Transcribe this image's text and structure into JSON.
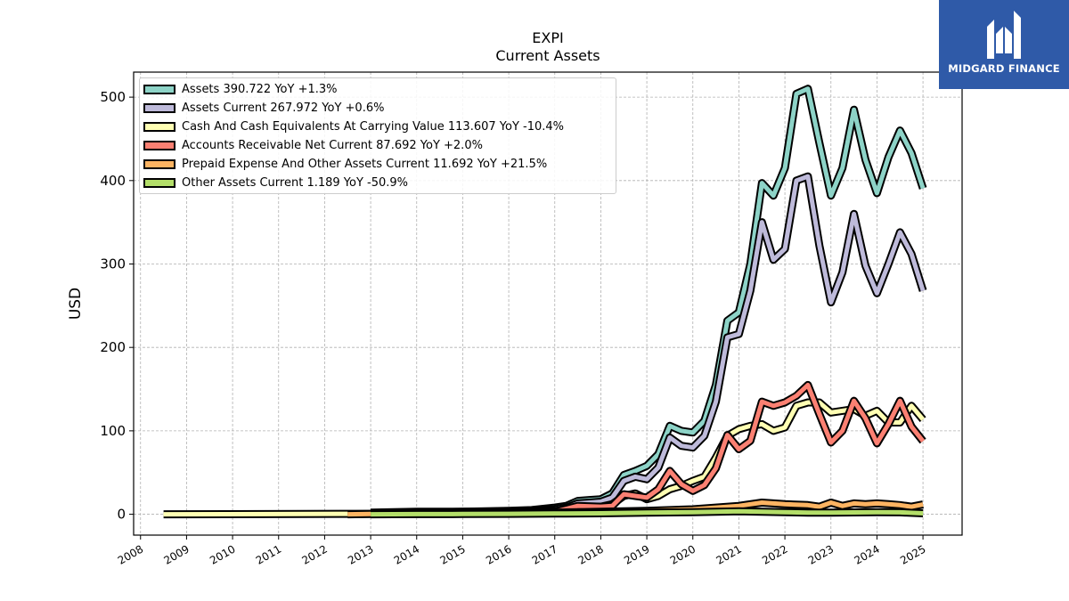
{
  "brand": {
    "name": "MIDGARD FINANCE",
    "bg_color": "#2f5aa8"
  },
  "chart_data": {
    "type": "area",
    "title": "EXPI",
    "subtitle": "Current  Assets",
    "ylabel": "USD",
    "xlabel": "",
    "ylim": [
      -25,
      530
    ],
    "xlim": [
      2007.85,
      2025.85
    ],
    "yticks": [
      0,
      100,
      200,
      300,
      400,
      500
    ],
    "xticks": [
      "2008",
      "2009",
      "2010",
      "2011",
      "2012",
      "2013",
      "2014",
      "2015",
      "2016",
      "2017",
      "2018",
      "2019",
      "2020",
      "2021",
      "2022",
      "2023",
      "2024",
      "2025"
    ],
    "grid": true,
    "legend_position": "top-left",
    "series": [
      {
        "name": "Assets",
        "legend": "Assets  390.722 YoY +1.3%",
        "color": "#8dd3c7",
        "points": [
          [
            2013.0,
            2
          ],
          [
            2014.0,
            3
          ],
          [
            2015.0,
            3
          ],
          [
            2016.0,
            4
          ],
          [
            2016.5,
            5
          ],
          [
            2017.0,
            8
          ],
          [
            2017.25,
            10
          ],
          [
            2017.5,
            16
          ],
          [
            2017.75,
            17
          ],
          [
            2018.0,
            18
          ],
          [
            2018.25,
            25
          ],
          [
            2018.5,
            47
          ],
          [
            2018.75,
            52
          ],
          [
            2019.0,
            58
          ],
          [
            2019.25,
            72
          ],
          [
            2019.5,
            106
          ],
          [
            2019.75,
            100
          ],
          [
            2020.0,
            98
          ],
          [
            2020.25,
            112
          ],
          [
            2020.5,
            155
          ],
          [
            2020.75,
            232
          ],
          [
            2021.0,
            242
          ],
          [
            2021.25,
            300
          ],
          [
            2021.5,
            397
          ],
          [
            2021.75,
            382
          ],
          [
            2022.0,
            415
          ],
          [
            2022.25,
            504
          ],
          [
            2022.5,
            510
          ],
          [
            2022.75,
            445
          ],
          [
            2023.0,
            382
          ],
          [
            2023.25,
            415
          ],
          [
            2023.5,
            485
          ],
          [
            2023.75,
            425
          ],
          [
            2024.0,
            385
          ],
          [
            2024.25,
            428
          ],
          [
            2024.5,
            460
          ],
          [
            2024.75,
            433
          ],
          [
            2025.0,
            390.722
          ]
        ]
      },
      {
        "name": "Assets Current",
        "legend": "Assets Current  267.972 YoY +0.6%",
        "color": "#bebada",
        "points": [
          [
            2013.0,
            1
          ],
          [
            2014.0,
            2
          ],
          [
            2015.0,
            3
          ],
          [
            2016.0,
            3
          ],
          [
            2016.5,
            4
          ],
          [
            2017.0,
            6
          ],
          [
            2017.25,
            8
          ],
          [
            2017.5,
            13
          ],
          [
            2017.75,
            14
          ],
          [
            2018.0,
            15
          ],
          [
            2018.25,
            20
          ],
          [
            2018.5,
            40
          ],
          [
            2018.75,
            45
          ],
          [
            2019.0,
            42
          ],
          [
            2019.25,
            56
          ],
          [
            2019.5,
            92
          ],
          [
            2019.75,
            82
          ],
          [
            2020.0,
            80
          ],
          [
            2020.25,
            94
          ],
          [
            2020.5,
            135
          ],
          [
            2020.75,
            212
          ],
          [
            2021.0,
            216
          ],
          [
            2021.25,
            268
          ],
          [
            2021.5,
            350
          ],
          [
            2021.75,
            305
          ],
          [
            2022.0,
            318
          ],
          [
            2022.25,
            400
          ],
          [
            2022.5,
            405
          ],
          [
            2022.75,
            322
          ],
          [
            2023.0,
            254
          ],
          [
            2023.25,
            290
          ],
          [
            2023.5,
            360
          ],
          [
            2023.75,
            298
          ],
          [
            2024.0,
            265
          ],
          [
            2024.25,
            300
          ],
          [
            2024.5,
            338
          ],
          [
            2024.75,
            312
          ],
          [
            2025.0,
            267.972
          ]
        ]
      },
      {
        "name": "Cash And Cash Equivalents At Carrying Value",
        "legend": "Cash And Cash Equivalents At Carrying Value  113.607 YoY -10.4%",
        "color": "#ffffb3",
        "points": [
          [
            2008.5,
            0
          ],
          [
            2013.0,
            0.5
          ],
          [
            2014.0,
            1
          ],
          [
            2015.0,
            1.5
          ],
          [
            2016.0,
            2
          ],
          [
            2016.5,
            3
          ],
          [
            2017.0,
            4
          ],
          [
            2017.5,
            7
          ],
          [
            2018.0,
            9
          ],
          [
            2018.25,
            12
          ],
          [
            2018.5,
            22
          ],
          [
            2018.75,
            25
          ],
          [
            2019.0,
            18
          ],
          [
            2019.25,
            22
          ],
          [
            2019.5,
            30
          ],
          [
            2019.75,
            34
          ],
          [
            2020.0,
            40
          ],
          [
            2020.25,
            45
          ],
          [
            2020.5,
            68
          ],
          [
            2020.75,
            94
          ],
          [
            2021.0,
            102
          ],
          [
            2021.25,
            106
          ],
          [
            2021.5,
            108
          ],
          [
            2021.75,
            100
          ],
          [
            2022.0,
            104
          ],
          [
            2022.25,
            130
          ],
          [
            2022.5,
            134
          ],
          [
            2022.75,
            134
          ],
          [
            2023.0,
            122
          ],
          [
            2023.25,
            124
          ],
          [
            2023.5,
            126
          ],
          [
            2023.75,
            118
          ],
          [
            2024.0,
            124
          ],
          [
            2024.25,
            110
          ],
          [
            2024.5,
            110
          ],
          [
            2024.75,
            130
          ],
          [
            2025.0,
            113.607
          ]
        ]
      },
      {
        "name": "Accounts Receivable Net Current",
        "legend": "Accounts Receivable Net Current  87.692 YoY +2.0%",
        "color": "#fb8072",
        "points": [
          [
            2013.0,
            0.5
          ],
          [
            2014.0,
            1
          ],
          [
            2015.0,
            1
          ],
          [
            2016.0,
            1.5
          ],
          [
            2016.5,
            2
          ],
          [
            2017.0,
            3
          ],
          [
            2017.5,
            10
          ],
          [
            2018.0,
            9
          ],
          [
            2018.25,
            10
          ],
          [
            2018.5,
            24
          ],
          [
            2018.75,
            22
          ],
          [
            2019.0,
            20
          ],
          [
            2019.25,
            30
          ],
          [
            2019.5,
            52
          ],
          [
            2019.75,
            36
          ],
          [
            2020.0,
            28
          ],
          [
            2020.25,
            35
          ],
          [
            2020.5,
            55
          ],
          [
            2020.75,
            95
          ],
          [
            2021.0,
            78
          ],
          [
            2021.25,
            88
          ],
          [
            2021.5,
            135
          ],
          [
            2021.75,
            130
          ],
          [
            2022.0,
            134
          ],
          [
            2022.25,
            142
          ],
          [
            2022.5,
            155
          ],
          [
            2022.75,
            120
          ],
          [
            2023.0,
            86
          ],
          [
            2023.25,
            100
          ],
          [
            2023.5,
            136
          ],
          [
            2023.75,
            115
          ],
          [
            2024.0,
            85
          ],
          [
            2024.25,
            108
          ],
          [
            2024.5,
            136
          ],
          [
            2024.75,
            105
          ],
          [
            2025.0,
            87.692
          ]
        ]
      },
      {
        "name": "Prepaid Expense And Other Assets Current",
        "legend": "Prepaid Expense And Other Assets Current  11.692 YoY +21.5%",
        "color": "#fdb462",
        "points": [
          [
            2012.5,
            0
          ],
          [
            2013.0,
            0.3
          ],
          [
            2014.0,
            0.5
          ],
          [
            2015.0,
            0.7
          ],
          [
            2016.0,
            1
          ],
          [
            2017.0,
            2
          ],
          [
            2018.0,
            3
          ],
          [
            2019.0,
            4
          ],
          [
            2020.0,
            6
          ],
          [
            2020.5,
            8
          ],
          [
            2021.0,
            10
          ],
          [
            2021.25,
            12
          ],
          [
            2021.5,
            14
          ],
          [
            2021.75,
            13
          ],
          [
            2022.0,
            12
          ],
          [
            2022.5,
            11
          ],
          [
            2022.75,
            9
          ],
          [
            2023.0,
            14
          ],
          [
            2023.25,
            10
          ],
          [
            2023.5,
            13
          ],
          [
            2023.75,
            12
          ],
          [
            2024.0,
            13
          ],
          [
            2024.25,
            12
          ],
          [
            2024.5,
            11
          ],
          [
            2024.75,
            9
          ],
          [
            2025.0,
            11.692
          ]
        ]
      },
      {
        "name": "Other Assets Current",
        "legend": "Other Assets Current  1.189 YoY -50.9%",
        "color": "#b3de69",
        "points": [
          [
            2013.0,
            0
          ],
          [
            2014.0,
            0.2
          ],
          [
            2015.0,
            0.3
          ],
          [
            2016.0,
            0.5
          ],
          [
            2017.0,
            0.8
          ],
          [
            2018.0,
            1.2
          ],
          [
            2019.0,
            2
          ],
          [
            2020.0,
            2.5
          ],
          [
            2020.5,
            3
          ],
          [
            2021.0,
            3.5
          ],
          [
            2021.5,
            3
          ],
          [
            2022.0,
            2.5
          ],
          [
            2022.5,
            2
          ],
          [
            2023.0,
            2
          ],
          [
            2023.5,
            2.2
          ],
          [
            2024.0,
            2.4
          ],
          [
            2024.5,
            2.3
          ],
          [
            2025.0,
            1.189
          ]
        ]
      }
    ]
  }
}
